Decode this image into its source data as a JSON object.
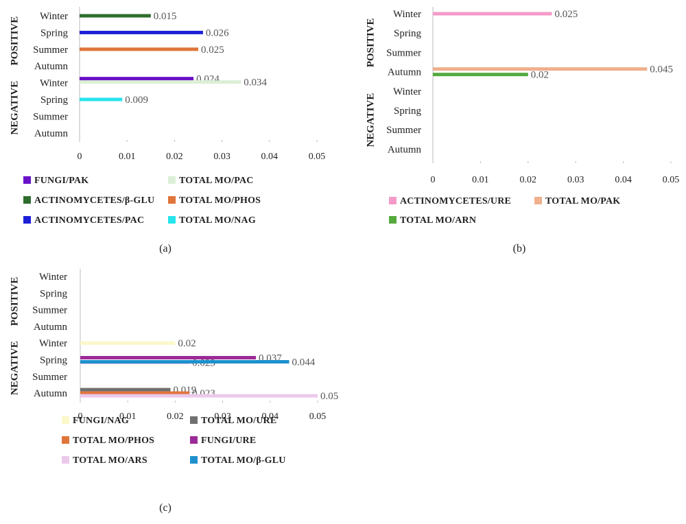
{
  "chart_data": [
    {
      "type": "bar",
      "panel_label": "(a)",
      "orientation": "horizontal",
      "categories": [
        "Winter",
        "Spring",
        "Summer",
        "Autumn",
        "Winter",
        "Spring",
        "Summer",
        "Autumn"
      ],
      "groups": [
        "POSITIVE",
        "NEGATIVE"
      ],
      "xlim": [
        0,
        0.05
      ],
      "xticks": [
        "0",
        "0.01",
        "0.02",
        "0.03",
        "0.04",
        "0.05"
      ],
      "legend_position": "bottom",
      "series": [
        {
          "name": "FUNGI/PAK",
          "color": "#6a11c9",
          "values": [
            null,
            null,
            null,
            null,
            0.024,
            null,
            null,
            null
          ],
          "labels": [
            "",
            "",
            "",
            "",
            "0.024",
            "",
            "",
            ""
          ]
        },
        {
          "name": "TOTAL MO/PAC",
          "color": "#dcefd6",
          "values": [
            null,
            null,
            null,
            null,
            0.034,
            null,
            null,
            null
          ],
          "labels": [
            "",
            "",
            "",
            "",
            "0.034",
            "",
            "",
            ""
          ]
        },
        {
          "name": "ACTINOMYCETES/β-GLU",
          "color": "#2d6e2f",
          "values": [
            0.015,
            null,
            null,
            null,
            null,
            null,
            null,
            null
          ],
          "labels": [
            "0.015",
            "",
            "",
            "",
            "",
            "",
            "",
            ""
          ]
        },
        {
          "name": "TOTAL MO/PHOS",
          "color": "#e0753b",
          "values": [
            null,
            null,
            0.025,
            null,
            null,
            null,
            null,
            null
          ],
          "labels": [
            "",
            "",
            "0.025",
            "",
            "",
            "",
            "",
            ""
          ]
        },
        {
          "name": "ACTINOMYCETES/PAC",
          "color": "#1c1fd6",
          "values": [
            null,
            0.026,
            null,
            null,
            null,
            null,
            null,
            null
          ],
          "labels": [
            "",
            "0.026",
            "",
            "",
            "",
            "",
            "",
            ""
          ]
        },
        {
          "name": "TOTAL MO/NAG",
          "color": "#27e4ec",
          "values": [
            null,
            null,
            null,
            null,
            null,
            0.009,
            null,
            null
          ],
          "labels": [
            "",
            "",
            "",
            "",
            "",
            "0.009",
            "",
            ""
          ]
        }
      ]
    },
    {
      "type": "bar",
      "panel_label": "(b)",
      "orientation": "horizontal",
      "categories": [
        "Winter",
        "Spring",
        "Summer",
        "Autumn",
        "Winter",
        "Spring",
        "Summer",
        "Autumn"
      ],
      "groups": [
        "POSITIVE",
        "NEGATIVE"
      ],
      "xlim": [
        0,
        0.05
      ],
      "xticks": [
        "0",
        "0.01",
        "0.02",
        "0.03",
        "0.04",
        "0.05"
      ],
      "legend_position": "bottom",
      "series": [
        {
          "name": "ACTINOMYCETES/URE",
          "color": "#f59ac8",
          "values": [
            0.025,
            null,
            null,
            null,
            null,
            null,
            null,
            null
          ],
          "labels": [
            "0.025",
            "",
            "",
            "",
            "",
            "",
            "",
            ""
          ]
        },
        {
          "name": "TOTAL MO/PAK",
          "color": "#efb08c",
          "values": [
            null,
            null,
            null,
            0.045,
            null,
            null,
            null,
            null
          ],
          "labels": [
            "",
            "",
            "",
            "0.045",
            "",
            "",
            "",
            ""
          ]
        },
        {
          "name": "TOTAL MO/ARN",
          "color": "#55aa3e",
          "values": [
            null,
            null,
            null,
            0.02,
            null,
            null,
            null,
            null
          ],
          "labels": [
            "",
            "",
            "",
            "0.02",
            "",
            "",
            "",
            ""
          ]
        }
      ]
    },
    {
      "type": "bar",
      "panel_label": "(c)",
      "orientation": "horizontal",
      "categories": [
        "Winter",
        "Spring",
        "Summer",
        "Autumn",
        "Winter",
        "Spring",
        "Summer",
        "Autumn"
      ],
      "groups": [
        "POSITIVE",
        "NEGATIVE"
      ],
      "xlim": [
        0,
        0.05
      ],
      "xticks": [
        "0",
        "0.01",
        "0.02",
        "0.03",
        "0.04",
        "0.05"
      ],
      "legend_position": "bottom",
      "series": [
        {
          "name": "FUNGI/NAG",
          "color": "#fbf8c9",
          "values": [
            null,
            null,
            null,
            null,
            0.02,
            null,
            null,
            null
          ],
          "labels": [
            "",
            "",
            "",
            "",
            "0.02",
            "",
            "",
            ""
          ]
        },
        {
          "name": "TOTAL MO/URE",
          "color": "#707070",
          "values": [
            null,
            null,
            null,
            null,
            null,
            null,
            null,
            0.019
          ],
          "labels": [
            "",
            "",
            "",
            "",
            "",
            "",
            "",
            "0.019"
          ]
        },
        {
          "name": "TOTAL MO/PHOS",
          "color": "#e0753b",
          "values": [
            null,
            null,
            null,
            null,
            null,
            null,
            null,
            0.023
          ],
          "labels": [
            "",
            "",
            "",
            "",
            "",
            "",
            "",
            "0.023"
          ]
        },
        {
          "name": "FUNGI/URE",
          "color": "#9c2a98",
          "values": [
            null,
            null,
            null,
            null,
            null,
            0.037,
            null,
            null
          ],
          "labels": [
            "",
            "",
            "",
            "",
            "",
            "0.037",
            "",
            ""
          ]
        },
        {
          "name": "TOTAL MO/ARS",
          "color": "#ecc9ec",
          "values": [
            null,
            null,
            null,
            null,
            null,
            0.023,
            null,
            0.05
          ],
          "labels": [
            "",
            "",
            "",
            "",
            "",
            "0.023",
            "",
            "0.05"
          ]
        },
        {
          "name": "TOTAL MO/β-GLU",
          "color": "#1e90cd",
          "values": [
            null,
            null,
            null,
            null,
            null,
            0.044,
            null,
            null
          ],
          "labels": [
            "",
            "",
            "",
            "",
            "",
            "0.044",
            "",
            ""
          ]
        }
      ]
    }
  ]
}
